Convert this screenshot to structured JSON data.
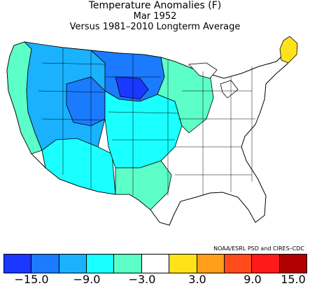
{
  "header": {
    "title": "Temperature Anomalies (F)",
    "subtitle": "Mar 1952",
    "baseline": "Versus 1981–2010 Longterm Average"
  },
  "credit": "NOAA/ESRL PSD and CIRES–CDC",
  "legend": {
    "colors": [
      "#1a38ff",
      "#1a7bff",
      "#1ab2ff",
      "#1affff",
      "#5cffc8",
      "#ffffff",
      "#ffe21a",
      "#ff9f1a",
      "#ff4a1a",
      "#ff1a1a",
      "#b20000"
    ],
    "tick_labels": [
      "−15.0",
      "−9.0",
      "−3.0",
      "3.0",
      "9.0",
      "15.0"
    ]
  },
  "map_regions": [
    {
      "region": "Pacific Northwest",
      "anomaly_class": "#5cffc8"
    },
    {
      "region": "Northern Rockies / Plains",
      "anomaly_class": "#1a7bff"
    },
    {
      "region": "Great Basin",
      "anomaly_class": "#1ab2ff"
    },
    {
      "region": "Southwest",
      "anomaly_class": "#1affff"
    },
    {
      "region": "Central Plains",
      "anomaly_class": "#5cffc8"
    },
    {
      "region": "East / Southeast",
      "anomaly_class": "#ffffff"
    },
    {
      "region": "Maine",
      "anomaly_class": "#ffe21a"
    }
  ]
}
